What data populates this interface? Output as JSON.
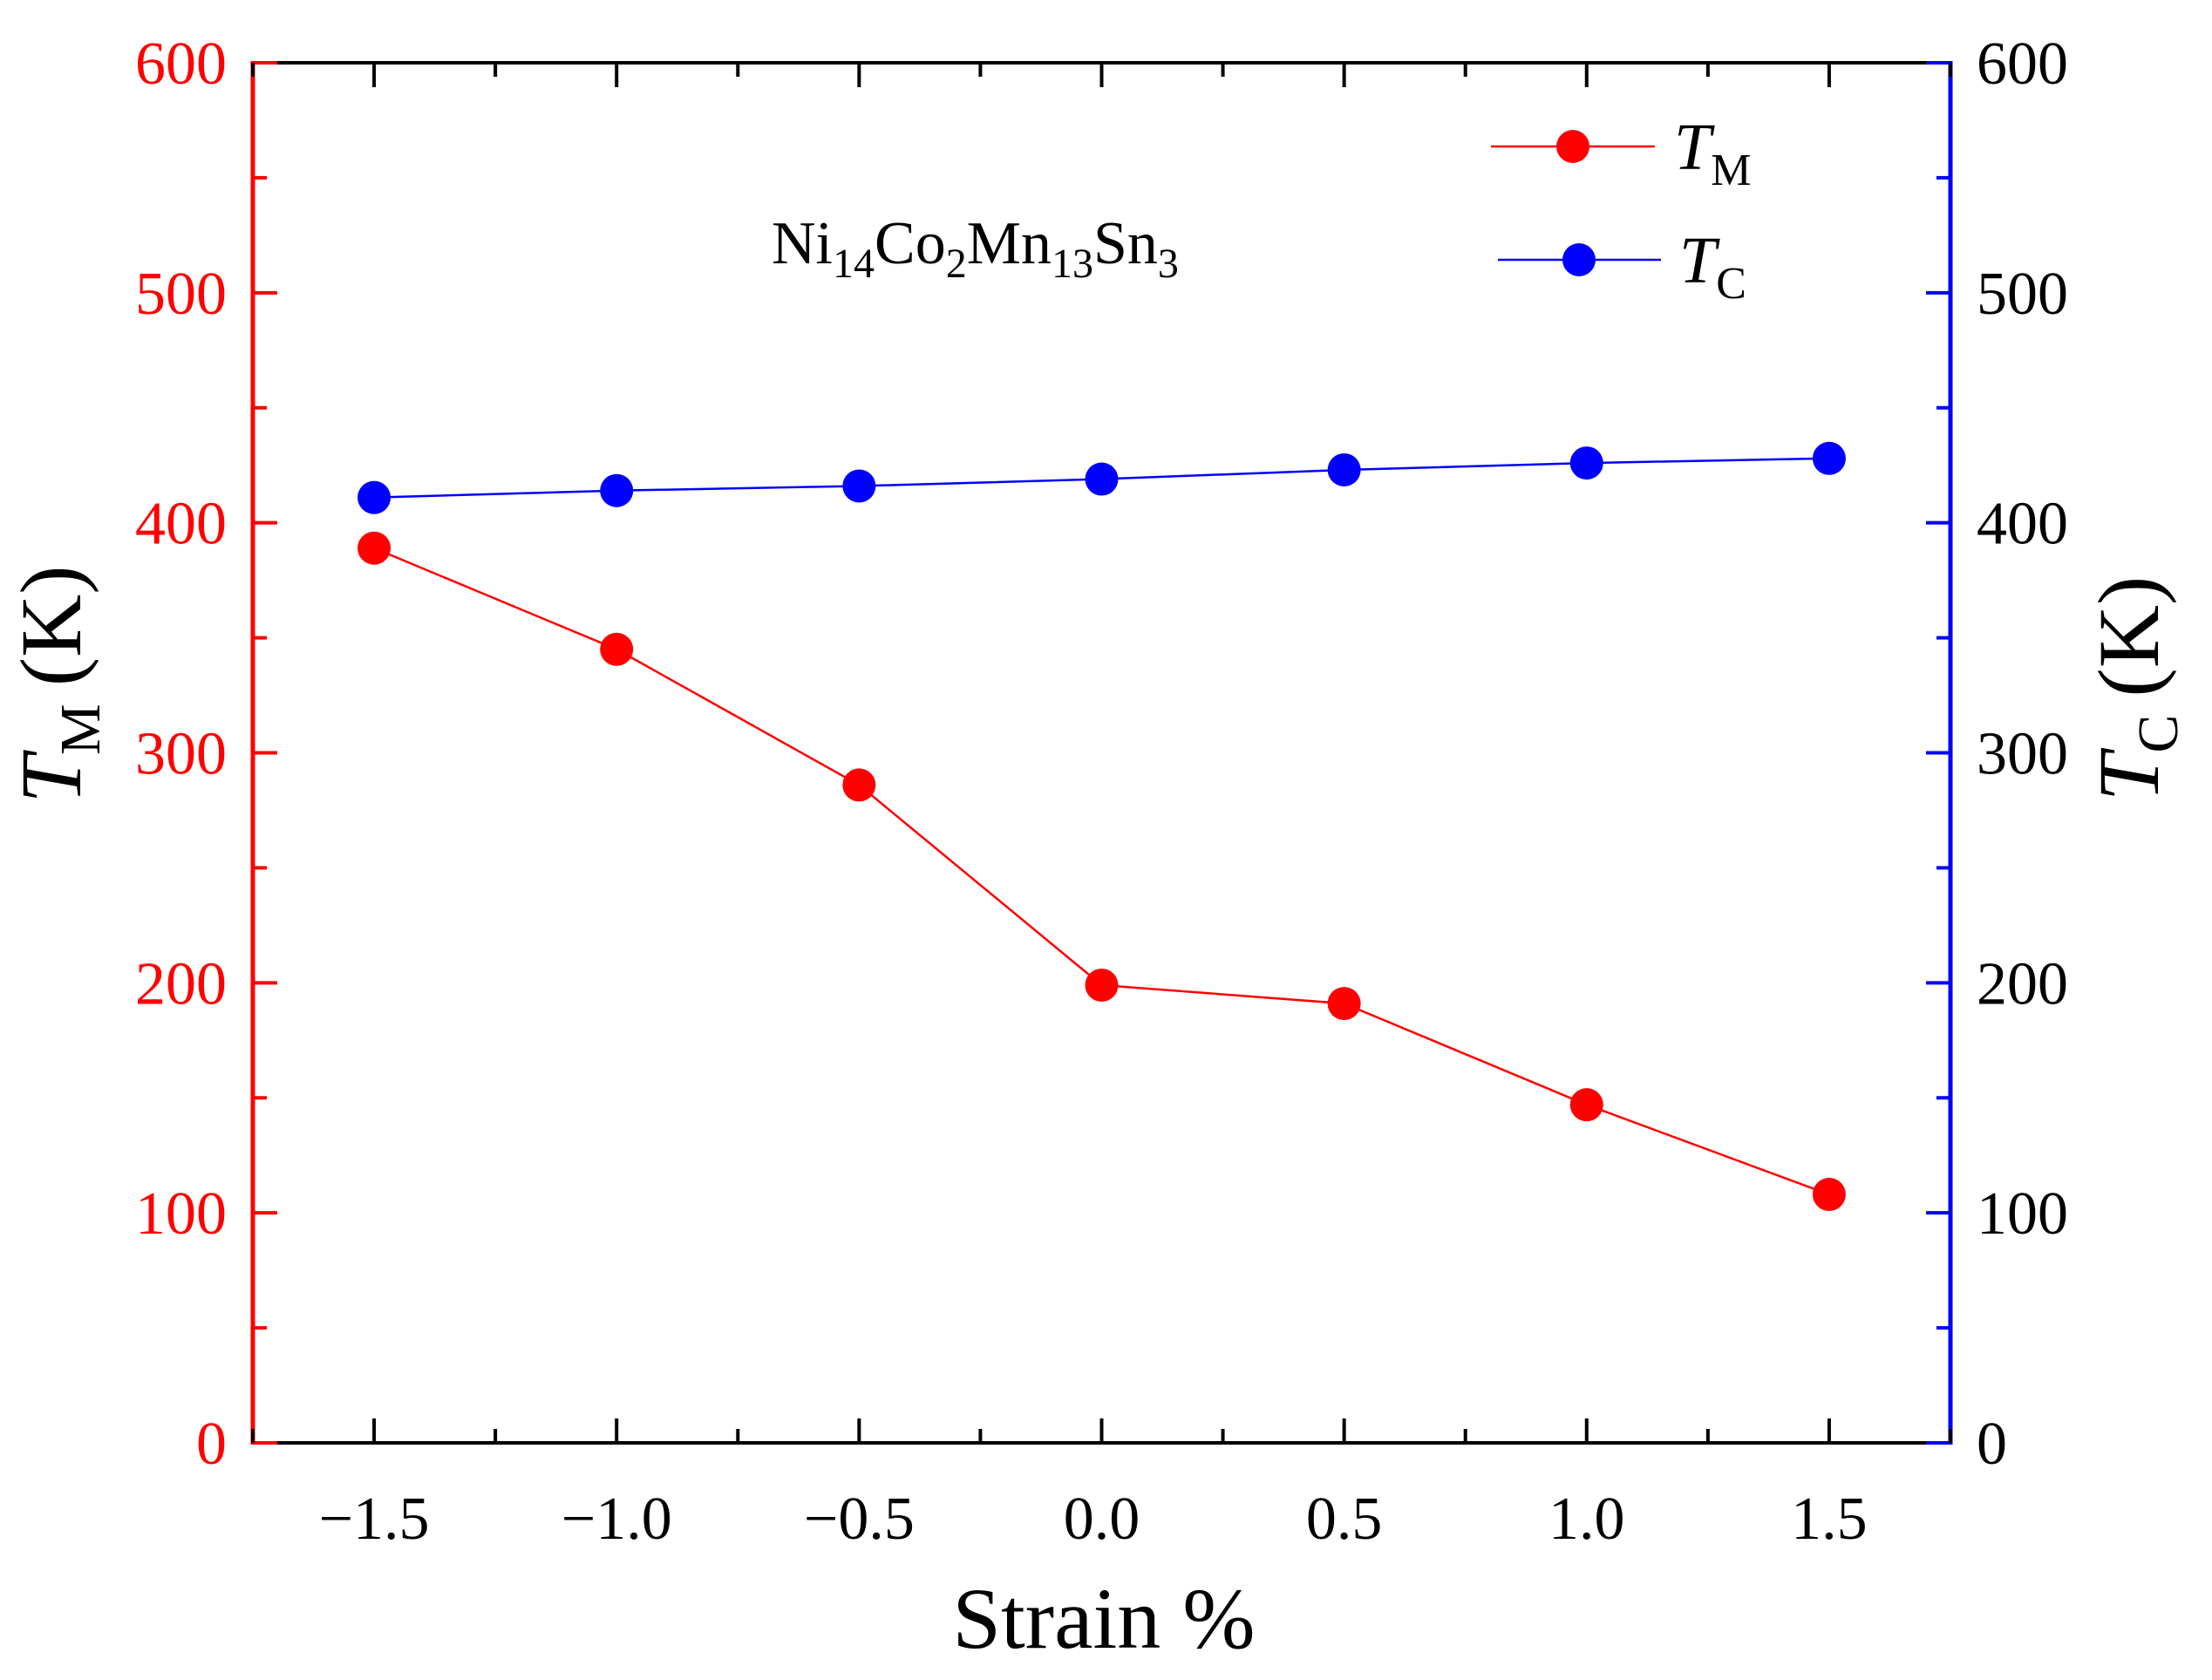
{
  "chart_data": {
    "type": "line",
    "annotation": {
      "base": [
        "Ni",
        "Co",
        "Mn",
        "Sn"
      ],
      "subs": [
        "14",
        "2",
        "13",
        "3"
      ]
    },
    "x": [
      -1.5,
      -1.0,
      -0.5,
      0.0,
      0.5,
      1.0,
      1.5
    ],
    "x_tick_values": [
      -1.5,
      -1.0,
      -0.5,
      0.0,
      0.5,
      1.0,
      1.5
    ],
    "x_tick_labels": [
      "−1.5",
      "−1.0",
      "−0.5",
      "0.0",
      "0.5",
      "1.0",
      "1.5"
    ],
    "y_tick_labels": [
      "0",
      "100",
      "200",
      "300",
      "400",
      "500",
      "600"
    ],
    "xlim": [
      -1.75,
      1.75
    ],
    "ylim": [
      0,
      600
    ],
    "y2lim": [
      0,
      600
    ],
    "xlabel": "Strain %",
    "ylabel": {
      "symbol": "T",
      "sub": "M",
      "unit": "(K)"
    },
    "y2label": {
      "symbol": "T",
      "sub": "C",
      "unit": "(K)"
    },
    "legend_position": "top-right",
    "series": [
      {
        "name": "TM",
        "symbol": "T",
        "sub": "M",
        "axis": "left",
        "color": "#ff0000",
        "values": [
          389,
          345,
          286,
          199,
          191,
          147,
          108
        ]
      },
      {
        "name": "TC",
        "symbol": "T",
        "sub": "C",
        "axis": "right",
        "color": "#0000ff",
        "values": [
          411,
          414,
          416,
          419,
          423,
          426,
          428
        ]
      }
    ],
    "colors": {
      "left_axis": "#ff0000",
      "right_axis": "#0000ff",
      "frame": "#000000"
    }
  }
}
